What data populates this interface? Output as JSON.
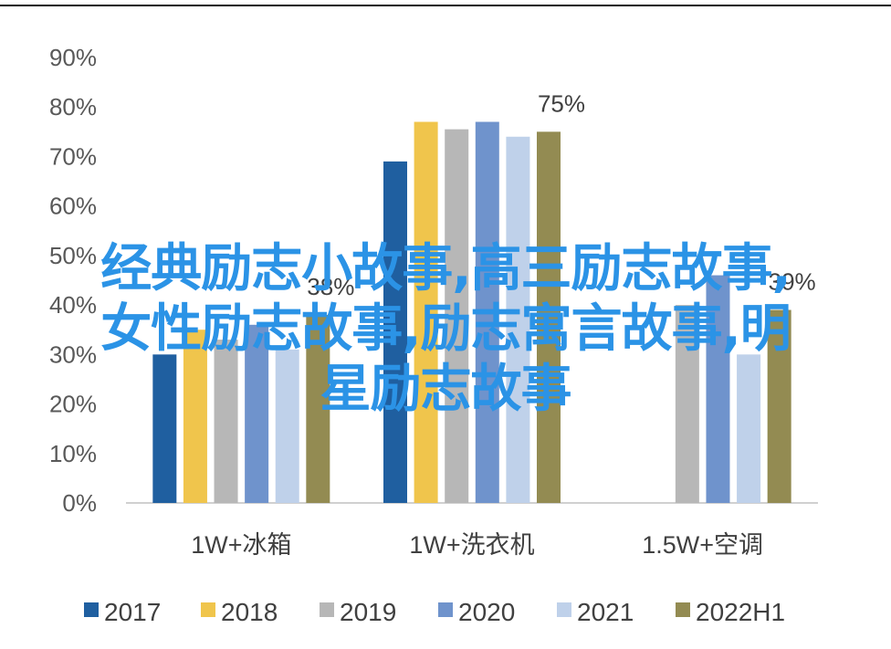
{
  "chart_data": {
    "type": "bar",
    "categories": [
      "1W+冰箱",
      "1W+洗衣机",
      "1.5W+空调"
    ],
    "series": [
      {
        "name": "2017",
        "color": "#1f5fa0",
        "values": [
          30,
          69,
          null
        ]
      },
      {
        "name": "2018",
        "color": "#f0c54c",
        "values": [
          35,
          77,
          null
        ]
      },
      {
        "name": "2019",
        "color": "#b7b7b7",
        "values": [
          33,
          75.5,
          40
        ]
      },
      {
        "name": "2020",
        "color": "#6f93cc",
        "values": [
          36,
          77,
          46
        ]
      },
      {
        "name": "2021",
        "color": "#bfd1ea",
        "values": [
          31,
          74,
          30
        ]
      },
      {
        "name": "2022H1",
        "color": "#938b52",
        "values": [
          38,
          75,
          39
        ]
      }
    ],
    "data_labels": [
      {
        "category": "1W+冰箱",
        "series": "2022H1",
        "text": "38%"
      },
      {
        "category": "1W+洗衣机",
        "series": "2022H1",
        "text": "75%"
      },
      {
        "category": "1.5W+空调",
        "series": "2022H1",
        "text": "39%"
      }
    ],
    "ylim": [
      0,
      90
    ],
    "yticks": [
      "0%",
      "10%",
      "20%",
      "30%",
      "40%",
      "50%",
      "60%",
      "70%",
      "80%",
      "90%"
    ],
    "grid": false,
    "legend_position": "bottom",
    "title": "",
    "xlabel": "",
    "ylabel": ""
  },
  "overlay": {
    "line1": "经典励志小故事,高三励志故事,",
    "line2": "女性励志故事,励志寓言故事,明",
    "line3": "星励志故事"
  }
}
